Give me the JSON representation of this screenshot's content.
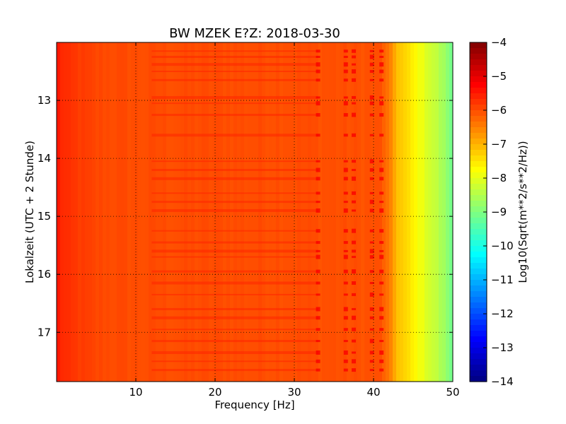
{
  "chart_data": {
    "type": "heatmap",
    "title": "BW MZEK E?Z: 2018-03-30",
    "xlabel": "Frequency [Hz]",
    "ylabel": "Lokalzeit (UTC + 2 Stunde)",
    "xlim": [
      0,
      50
    ],
    "ylim": [
      12.0,
      17.85
    ],
    "x_ticks": [
      10,
      20,
      30,
      40,
      50
    ],
    "x_tick_labels": [
      "10",
      "20",
      "30",
      "40",
      "50"
    ],
    "y_ticks": [
      13,
      14,
      15,
      16,
      17
    ],
    "y_tick_labels": [
      "13",
      "14",
      "15",
      "16",
      "17"
    ],
    "y_inverted": true,
    "grid": true,
    "colorbar": {
      "label": "Log10(Sqrt(m**2/s**2/Hz))",
      "min": -14,
      "max": -4,
      "colormap": "jet",
      "ticks": [
        -4,
        -5,
        -6,
        -7,
        -8,
        -9,
        -10,
        -11,
        -12,
        -13,
        -14
      ],
      "tick_labels": [
        "−4",
        "−5",
        "−6",
        "−7",
        "−8",
        "−9",
        "−10",
        "−11",
        "−12",
        "−13",
        "−14"
      ]
    },
    "spectrum_profile": {
      "frequency_hz": [
        0,
        0.5,
        1.5,
        5,
        10,
        20,
        30,
        41,
        42,
        43,
        44.5,
        46,
        48,
        49.5,
        50
      ],
      "log_amplitude": [
        -5.4,
        -5.6,
        -5.75,
        -5.95,
        -6.0,
        -6.0,
        -6.0,
        -6.05,
        -6.5,
        -7.1,
        -7.5,
        -7.9,
        -8.4,
        -8.9,
        -9.3
      ]
    },
    "spectral_lines_hz": [
      33,
      36.5,
      37.5,
      39.8,
      41
    ],
    "band_times_h": [
      12.15,
      12.25,
      12.38,
      12.5,
      12.65,
      12.95,
      13.05,
      13.25,
      13.6,
      14.05,
      14.2,
      14.35,
      14.6,
      14.75,
      14.9,
      15.25,
      15.45,
      15.6,
      15.7,
      15.95,
      16.15,
      16.35,
      16.6,
      16.75,
      16.95,
      17.15,
      17.35,
      17.5,
      17.65
    ]
  }
}
